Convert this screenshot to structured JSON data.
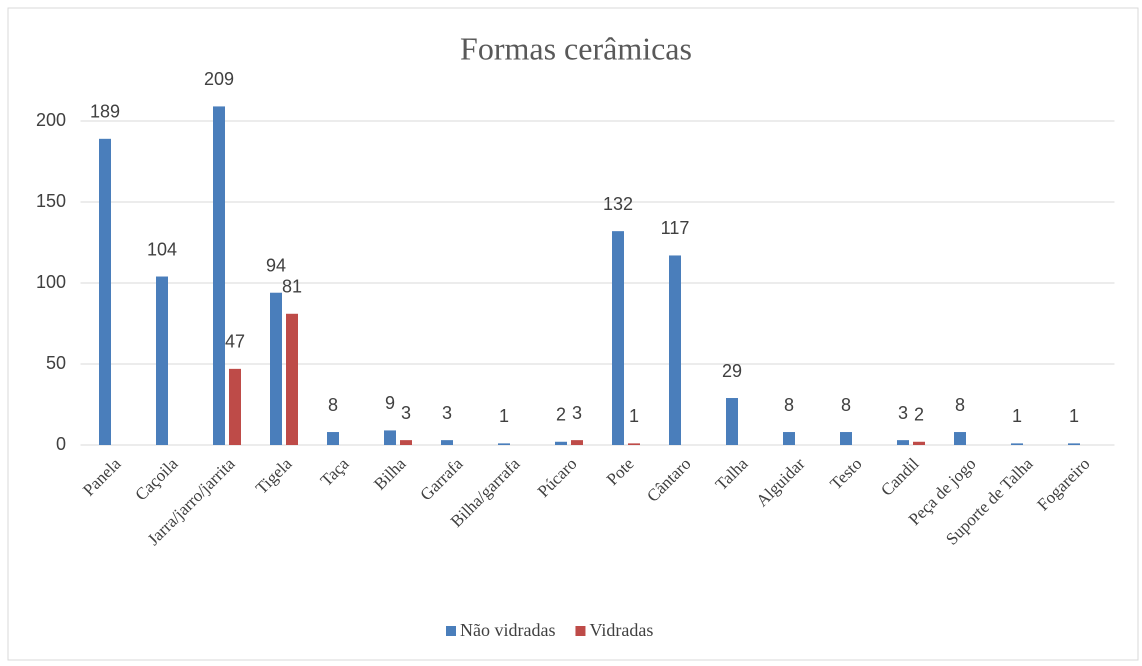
{
  "chart_data": {
    "type": "bar",
    "title": "Formas cerâmicas",
    "categories": [
      "Panela",
      "Caçoila",
      "Jarra/jarro/jarrita",
      "Tigela",
      "Taça",
      "Bilha",
      "Garrafa",
      "Bilha/garrafa",
      "Púcaro",
      "Pote",
      "Cântaro",
      "Talha",
      "Alguidar",
      "Testo",
      "Candil",
      "Peça de jogo",
      "Suporte de Talha",
      "Fogareiro"
    ],
    "series": [
      {
        "name": "Não vidradas",
        "color": "#4a7ebb",
        "values": [
          189,
          104,
          209,
          94,
          8,
          9,
          3,
          1,
          2,
          132,
          117,
          29,
          8,
          8,
          3,
          8,
          1,
          1
        ]
      },
      {
        "name": "Vidradas",
        "color": "#be4b48",
        "values": [
          null,
          null,
          47,
          81,
          null,
          3,
          null,
          null,
          3,
          1,
          null,
          null,
          null,
          null,
          2,
          null,
          null,
          null
        ]
      }
    ],
    "ylim": [
      0,
      220
    ],
    "yticks": [
      0,
      50,
      100,
      150,
      200
    ],
    "grid": true,
    "legend": "bottom"
  }
}
